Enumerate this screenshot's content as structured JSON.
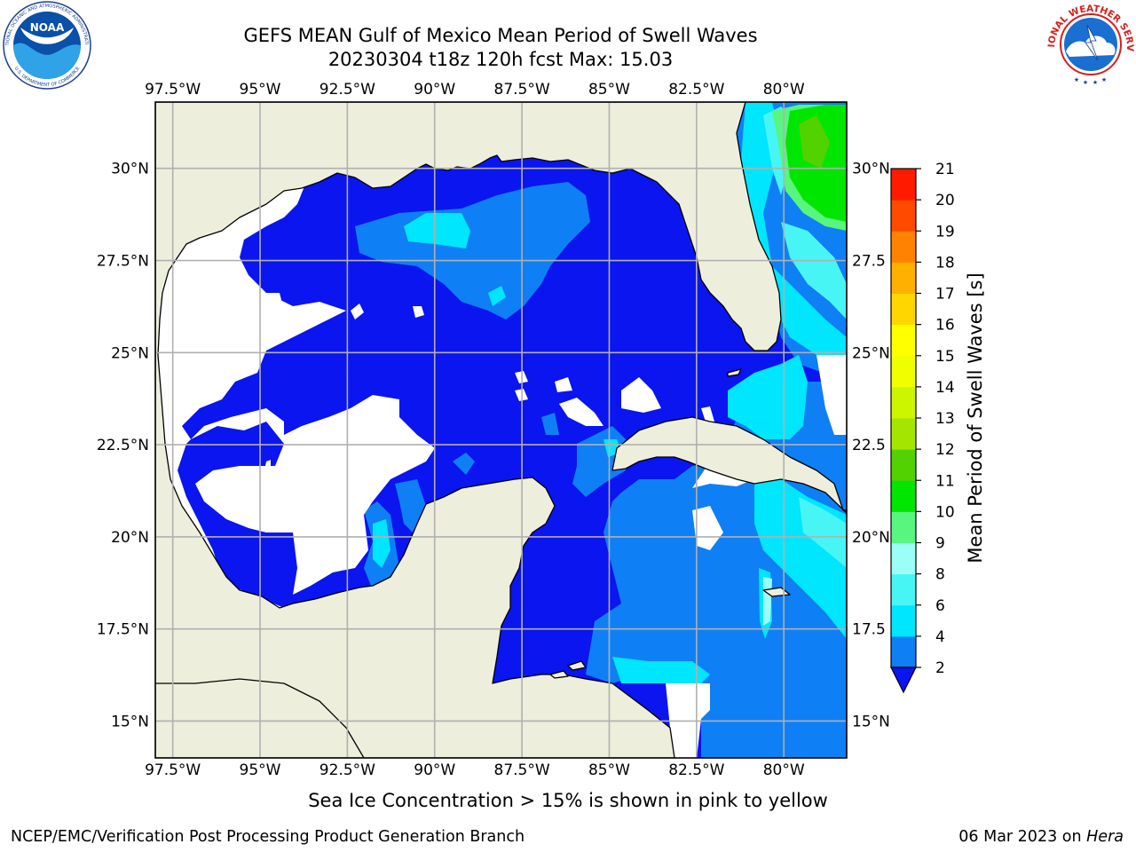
{
  "header": {
    "title_line1": "GEFS MEAN Gulf of Mexico Mean Period of Swell Waves",
    "title_line2": "20230304 t18z 120h fcst   Max: 15.03"
  },
  "logos": {
    "noaa": "NOAA",
    "nws_ring_text": "NATIONAL WEATHER SERVICE",
    "noaa_ring_text": "NATIONAL OCEANIC AND ATMOSPHERIC ADMINISTRATION",
    "noaa_ring_text_bottom": "U.S. DEPARTMENT OF COMMERCE"
  },
  "map": {
    "lon_ticks": [
      "97.5°W",
      "95°W",
      "92.5°W",
      "90°W",
      "87.5°W",
      "85°W",
      "82.5°W",
      "80°W"
    ],
    "lat_ticks_left": [
      "30°N",
      "27.5°N",
      "25°N",
      "22.5°N",
      "20°N",
      "17.5°N",
      "15°N"
    ],
    "lat_ticks_right": [
      "30°N",
      "27.5",
      "25°N",
      "22.5",
      "20°N",
      "17.5",
      "15°N"
    ],
    "lon_values": [
      -97.5,
      -95,
      -92.5,
      -90,
      -87.5,
      -85,
      -82.5,
      -80
    ],
    "lat_values": [
      30,
      27.5,
      25,
      22.5,
      20,
      17.5,
      15
    ],
    "extent": {
      "lon_min": -98,
      "lon_max": -78.2,
      "lat_min": 14,
      "lat_max": 31.8
    },
    "colors": {
      "land": "#eeeedd",
      "white_region": "#ffffff",
      "grid": "#b0b0b0",
      "coast": "#000000"
    }
  },
  "colorbar": {
    "label": "Mean Period of Swell Waves [s]",
    "tick_labels": [
      "21",
      "20",
      "19",
      "18",
      "17",
      "16",
      "15",
      "14",
      "13",
      "12",
      "11",
      "10",
      "9",
      "8",
      "6",
      "4",
      "2"
    ],
    "levels": [
      2,
      4,
      6,
      8,
      9,
      10,
      11,
      12,
      13,
      14,
      15,
      16,
      17,
      18,
      19,
      20,
      21
    ],
    "colors": [
      "#0a15f0",
      "#0f7ff5",
      "#00e6ff",
      "#48f5f5",
      "#9cfff7",
      "#58f57f",
      "#00e600",
      "#52d200",
      "#a4e600",
      "#ccf500",
      "#f0ff00",
      "#ffff00",
      "#ffd700",
      "#ffb000",
      "#ff8200",
      "#ff4a00",
      "#ff1a00",
      "#ff0000"
    ],
    "extend_below_color": "#0a15f0"
  },
  "caption": "Sea Ice Concentration > 15% is shown in pink to yellow",
  "footer": {
    "left": "NCEP/EMC/Verification Post Processing Product Generation Branch",
    "right_date": "06 Mar 2023 on ",
    "right_host": "Hera"
  }
}
